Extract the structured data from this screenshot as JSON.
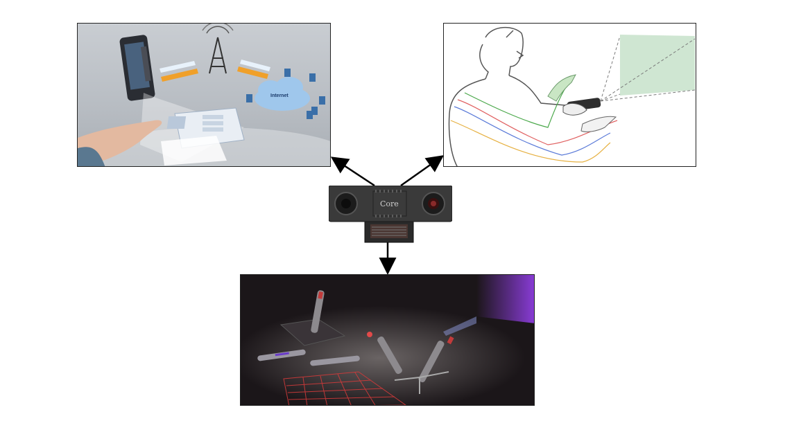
{
  "diagram": {
    "core_label": "Core",
    "internet_label": "Internet",
    "panels": [
      {
        "id": "mobile-projection",
        "description_icon": "smartphone-projector-icon"
      },
      {
        "id": "gesture-pointing",
        "description_icon": "hand-gesture-icon"
      },
      {
        "id": "pen-devices",
        "description_icon": "pen-projector-icon"
      }
    ],
    "colors": {
      "arrow": "#000000",
      "projection": "#cfe6d2",
      "laser_keyboard": "#d23a3a",
      "purple_light": "#8a3cd8"
    }
  }
}
